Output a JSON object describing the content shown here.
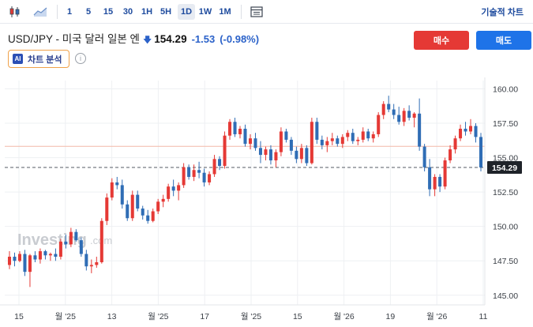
{
  "toolbar": {
    "timeframes": [
      "1",
      "5",
      "15",
      "30",
      "1H",
      "5H",
      "1D",
      "1W",
      "1M"
    ],
    "active_timeframe": "1D",
    "technical_chart_label": "기술적 차트"
  },
  "instrument": {
    "name": "USD/JPY - 미국 달러 일본 엔",
    "price": "154.29",
    "change": "-1.53",
    "change_pct": "(-0.98%)",
    "direction_color": "#2b62c9"
  },
  "actions": {
    "buy_label": "매수",
    "sell_label": "매도"
  },
  "ai": {
    "badge": "AI",
    "label": "차트 분석"
  },
  "watermark": {
    "brand": "Investing",
    "suffix": ".com"
  },
  "colors": {
    "up": "#e53935",
    "down": "#2f6db5",
    "prev_close_line": "#f4b9a8",
    "grid": "#eef0f3"
  },
  "chart_data": {
    "type": "candlestick",
    "y_axis": {
      "ticks": [
        "160.00",
        "157.50",
        "155.00",
        "152.50",
        "150.00",
        "147.50",
        "145.00"
      ],
      "tick_values": [
        160.0,
        157.5,
        155.0,
        152.5,
        150.0,
        147.5,
        145.0
      ],
      "range": [
        144.3,
        160.6
      ]
    },
    "x_axis": {
      "ticks": [
        "15",
        "월 '25",
        "13",
        "월 '25",
        "17",
        "월 '25",
        "15",
        "월 '26",
        "19",
        "월 '26",
        "11"
      ]
    },
    "current_price_label": "154.29",
    "current_price": 154.29,
    "prev_close": 155.82,
    "candles": [
      [
        147.2,
        148.2,
        146.9,
        147.8
      ],
      [
        147.8,
        148.1,
        147.1,
        147.5
      ],
      [
        147.5,
        148.2,
        147.4,
        148.0
      ],
      [
        148.0,
        148.3,
        146.4,
        146.7
      ],
      [
        146.7,
        148.0,
        145.6,
        147.9
      ],
      [
        147.9,
        148.2,
        147.4,
        147.6
      ],
      [
        147.6,
        148.4,
        147.3,
        148.2
      ],
      [
        148.2,
        148.3,
        147.6,
        147.9
      ],
      [
        147.9,
        148.1,
        147.5,
        148.0
      ],
      [
        148.0,
        148.4,
        147.5,
        147.8
      ],
      [
        147.8,
        149.1,
        147.6,
        148.9
      ],
      [
        148.9,
        149.4,
        148.4,
        148.7
      ],
      [
        148.7,
        149.9,
        148.5,
        149.6
      ],
      [
        149.6,
        149.8,
        148.9,
        149.0
      ],
      [
        149.0,
        149.2,
        147.8,
        148.0
      ],
      [
        148.0,
        148.3,
        146.8,
        147.1
      ],
      [
        147.1,
        147.6,
        146.6,
        147.2
      ],
      [
        147.2,
        147.8,
        147.0,
        147.4
      ],
      [
        147.4,
        150.6,
        147.3,
        150.4
      ],
      [
        150.4,
        152.4,
        150.1,
        152.1
      ],
      [
        152.1,
        153.5,
        151.9,
        153.2
      ],
      [
        153.2,
        153.6,
        152.7,
        153.0
      ],
      [
        153.0,
        153.4,
        151.3,
        151.6
      ],
      [
        151.6,
        151.9,
        150.4,
        150.6
      ],
      [
        150.6,
        152.6,
        150.4,
        152.3
      ],
      [
        152.3,
        152.6,
        151.1,
        151.3
      ],
      [
        151.3,
        151.5,
        150.5,
        150.8
      ],
      [
        150.8,
        151.2,
        150.2,
        150.4
      ],
      [
        150.4,
        151.3,
        150.3,
        151.1
      ],
      [
        151.1,
        152.0,
        150.9,
        151.8
      ],
      [
        151.8,
        152.3,
        151.4,
        152.0
      ],
      [
        152.0,
        153.1,
        151.8,
        152.9
      ],
      [
        152.9,
        153.4,
        152.2,
        152.6
      ],
      [
        152.6,
        153.2,
        151.9,
        153.0
      ],
      [
        153.0,
        154.6,
        152.8,
        154.3
      ],
      [
        154.3,
        154.5,
        153.4,
        153.6
      ],
      [
        153.6,
        154.5,
        153.3,
        154.1
      ],
      [
        154.1,
        154.7,
        153.5,
        153.9
      ],
      [
        153.9,
        154.2,
        152.9,
        153.2
      ],
      [
        153.2,
        154.0,
        153.0,
        153.8
      ],
      [
        153.8,
        155.2,
        153.6,
        154.9
      ],
      [
        154.9,
        155.1,
        154.1,
        154.4
      ],
      [
        154.4,
        156.9,
        154.2,
        156.6
      ],
      [
        156.6,
        157.8,
        156.3,
        157.6
      ],
      [
        157.6,
        157.9,
        156.5,
        156.7
      ],
      [
        156.7,
        157.3,
        156.4,
        157.1
      ],
      [
        157.1,
        157.4,
        155.8,
        156.0
      ],
      [
        156.0,
        156.7,
        155.6,
        156.4
      ],
      [
        156.4,
        156.8,
        155.5,
        155.7
      ],
      [
        155.7,
        156.2,
        154.6,
        155.2
      ],
      [
        155.2,
        155.8,
        154.8,
        155.6
      ],
      [
        155.6,
        155.9,
        154.5,
        154.8
      ],
      [
        154.8,
        155.6,
        154.3,
        155.4
      ],
      [
        155.4,
        157.2,
        155.1,
        156.9
      ],
      [
        156.9,
        157.1,
        156.1,
        156.3
      ],
      [
        156.3,
        156.5,
        155.2,
        155.5
      ],
      [
        155.5,
        155.8,
        154.6,
        154.9
      ],
      [
        154.9,
        156.0,
        154.6,
        155.7
      ],
      [
        155.7,
        155.9,
        154.4,
        154.6
      ],
      [
        154.6,
        157.9,
        154.5,
        157.6
      ],
      [
        157.6,
        157.9,
        156.0,
        156.3
      ],
      [
        156.3,
        156.6,
        155.6,
        155.9
      ],
      [
        155.9,
        156.5,
        155.4,
        156.2
      ],
      [
        156.2,
        156.8,
        155.9,
        156.4
      ],
      [
        156.4,
        156.6,
        155.8,
        156.0
      ],
      [
        156.0,
        156.7,
        155.7,
        156.5
      ],
      [
        156.5,
        157.0,
        156.2,
        156.8
      ],
      [
        156.8,
        157.1,
        156.0,
        156.2
      ],
      [
        156.2,
        156.5,
        155.9,
        156.3
      ],
      [
        156.3,
        157.2,
        156.1,
        156.9
      ],
      [
        156.9,
        157.1,
        156.2,
        156.4
      ],
      [
        156.4,
        156.9,
        156.1,
        156.7
      ],
      [
        156.7,
        158.3,
        156.5,
        158.1
      ],
      [
        158.1,
        159.1,
        157.8,
        158.9
      ],
      [
        158.9,
        159.5,
        158.3,
        158.5
      ],
      [
        158.5,
        158.9,
        157.8,
        158.1
      ],
      [
        158.1,
        158.7,
        157.4,
        157.6
      ],
      [
        157.6,
        158.6,
        157.3,
        158.4
      ],
      [
        158.4,
        158.8,
        157.7,
        157.9
      ],
      [
        157.9,
        158.3,
        157.2,
        158.2
      ],
      [
        158.2,
        159.3,
        155.5,
        155.8
      ],
      [
        155.8,
        156.0,
        154.0,
        154.3
      ],
      [
        154.3,
        154.9,
        152.2,
        152.7
      ],
      [
        152.7,
        153.8,
        152.2,
        153.6
      ],
      [
        153.6,
        153.8,
        152.5,
        152.9
      ],
      [
        152.9,
        155.0,
        152.7,
        154.8
      ],
      [
        154.8,
        155.9,
        154.6,
        155.6
      ],
      [
        155.6,
        156.6,
        155.3,
        156.4
      ],
      [
        156.4,
        157.4,
        156.2,
        157.1
      ],
      [
        157.1,
        157.6,
        156.6,
        156.9
      ],
      [
        156.9,
        157.8,
        156.7,
        157.3
      ],
      [
        157.3,
        157.5,
        156.1,
        156.5
      ],
      [
        156.5,
        156.8,
        154.0,
        154.29
      ]
    ]
  }
}
